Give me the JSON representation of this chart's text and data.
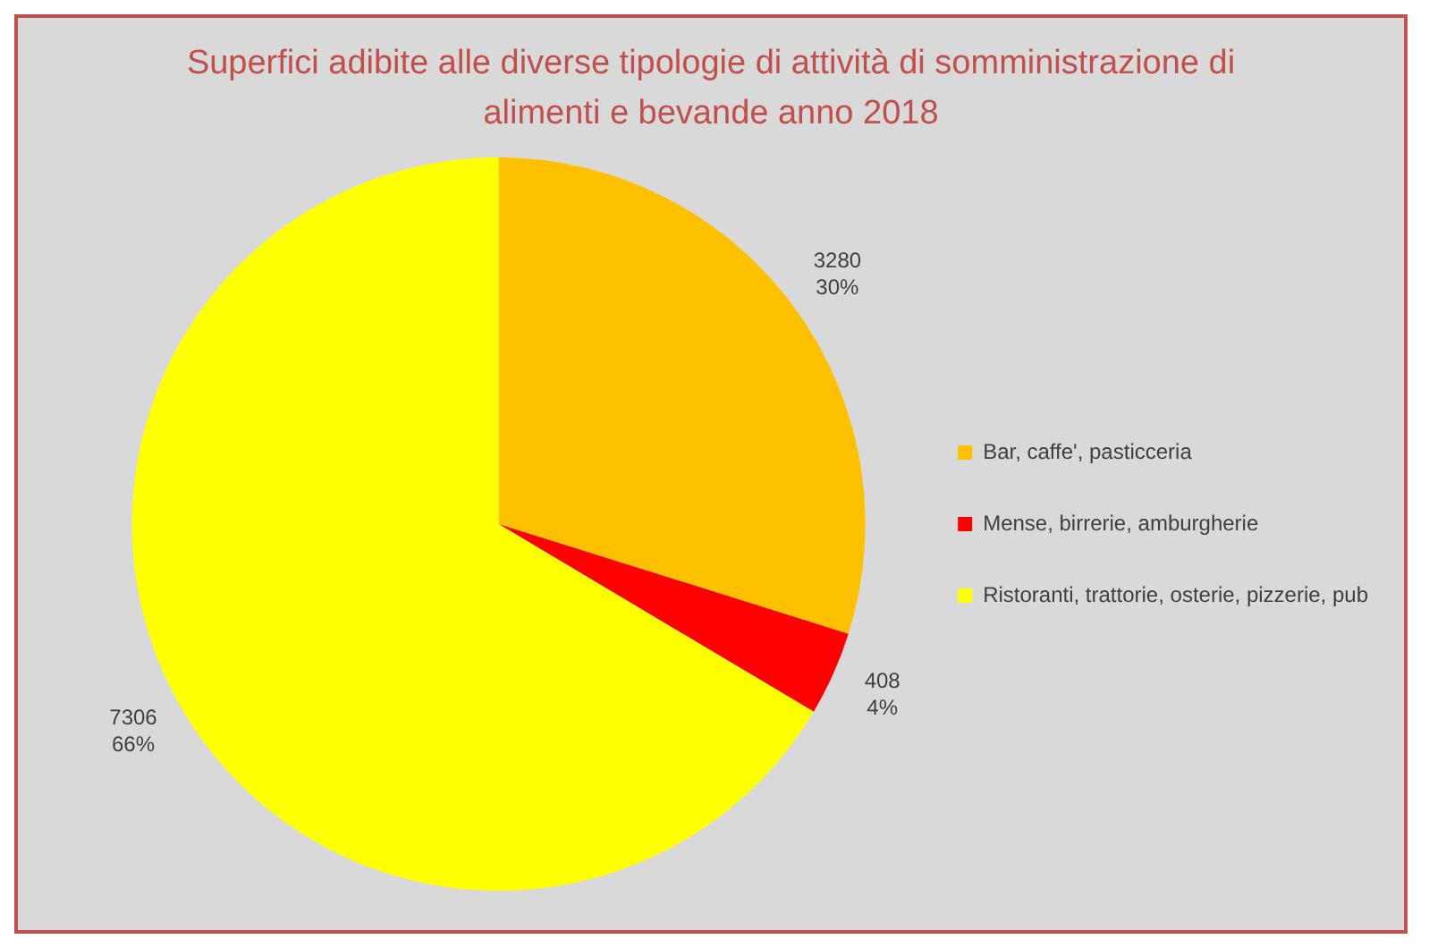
{
  "chart_data": {
    "type": "pie",
    "title": "Superfici adibite alle diverse tipologie di attività di somministrazione di alimenti e bevande anno 2018",
    "categories": [
      "Bar, caffe', pasticceria",
      "Mense, birrerie, amburgherie",
      "Ristoranti, trattorie, osterie, pizzerie, pub"
    ],
    "values": [
      3280,
      408,
      7306
    ],
    "colors": [
      "#ffc000",
      "#ff0000",
      "#ffff00"
    ],
    "value_labels": [
      "3280\n30%",
      "408\n4%",
      "7306\n66%"
    ],
    "legend": "right"
  }
}
